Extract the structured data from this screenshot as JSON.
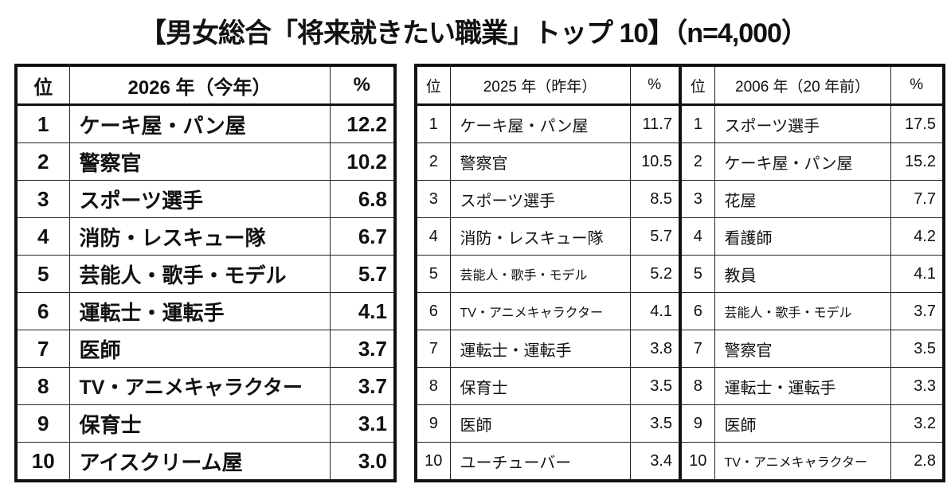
{
  "title": "【男女総合「将来就きたい職業」トップ 10】（n=4,000）",
  "current": {
    "headers": {
      "rank": "位",
      "year": "2026 年（今年）",
      "pct": "%"
    },
    "rows": [
      {
        "rank": "1",
        "job": "ケーキ屋・パン屋",
        "pct": "12.2"
      },
      {
        "rank": "2",
        "job": "警察官",
        "pct": "10.2"
      },
      {
        "rank": "3",
        "job": "スポーツ選手",
        "pct": "6.8"
      },
      {
        "rank": "4",
        "job": "消防・レスキュー隊",
        "pct": "6.7"
      },
      {
        "rank": "5",
        "job": "芸能人・歌手・モデル",
        "pct": "5.7"
      },
      {
        "rank": "6",
        "job": "運転士・運転手",
        "pct": "4.1"
      },
      {
        "rank": "7",
        "job": "医師",
        "pct": "3.7"
      },
      {
        "rank": "8",
        "job": "TV・アニメキャラクター",
        "pct": "3.7"
      },
      {
        "rank": "9",
        "job": "保育士",
        "pct": "3.1"
      },
      {
        "rank": "10",
        "job": "アイスクリーム屋",
        "pct": "3.0"
      }
    ]
  },
  "last_year": {
    "headers": {
      "rank": "位",
      "year": "2025 年（昨年）",
      "pct": "%"
    },
    "rows": [
      {
        "rank": "1",
        "job": "ケーキ屋・パン屋",
        "pct": "11.7"
      },
      {
        "rank": "2",
        "job": "警察官",
        "pct": "10.5"
      },
      {
        "rank": "3",
        "job": "スポーツ選手",
        "pct": "8.5"
      },
      {
        "rank": "4",
        "job": "消防・レスキュー隊",
        "pct": "5.7"
      },
      {
        "rank": "5",
        "job": "芸能人・歌手・モデル",
        "pct": "5.2"
      },
      {
        "rank": "6",
        "job": "TV・アニメキャラクター",
        "pct": "4.1"
      },
      {
        "rank": "7",
        "job": "運転士・運転手",
        "pct": "3.8"
      },
      {
        "rank": "8",
        "job": "保育士",
        "pct": "3.5"
      },
      {
        "rank": "9",
        "job": "医師",
        "pct": "3.5"
      },
      {
        "rank": "10",
        "job": "ユーチューバー",
        "pct": "3.4"
      }
    ]
  },
  "twenty_years_ago": {
    "headers": {
      "rank": "位",
      "year": "2006 年（20 年前）",
      "pct": "%"
    },
    "rows": [
      {
        "rank": "1",
        "job": "スポーツ選手",
        "pct": "17.5"
      },
      {
        "rank": "2",
        "job": "ケーキ屋・パン屋",
        "pct": "15.2"
      },
      {
        "rank": "3",
        "job": "花屋",
        "pct": "7.7"
      },
      {
        "rank": "4",
        "job": "看護師",
        "pct": "4.2"
      },
      {
        "rank": "5",
        "job": "教員",
        "pct": "4.1"
      },
      {
        "rank": "6",
        "job": "芸能人・歌手・モデル",
        "pct": "3.7"
      },
      {
        "rank": "7",
        "job": "警察官",
        "pct": "3.5"
      },
      {
        "rank": "8",
        "job": "運転士・運転手",
        "pct": "3.3"
      },
      {
        "rank": "9",
        "job": "医師",
        "pct": "3.2"
      },
      {
        "rank": "10",
        "job": "TV・アニメキャラクター",
        "pct": "2.8"
      }
    ]
  }
}
